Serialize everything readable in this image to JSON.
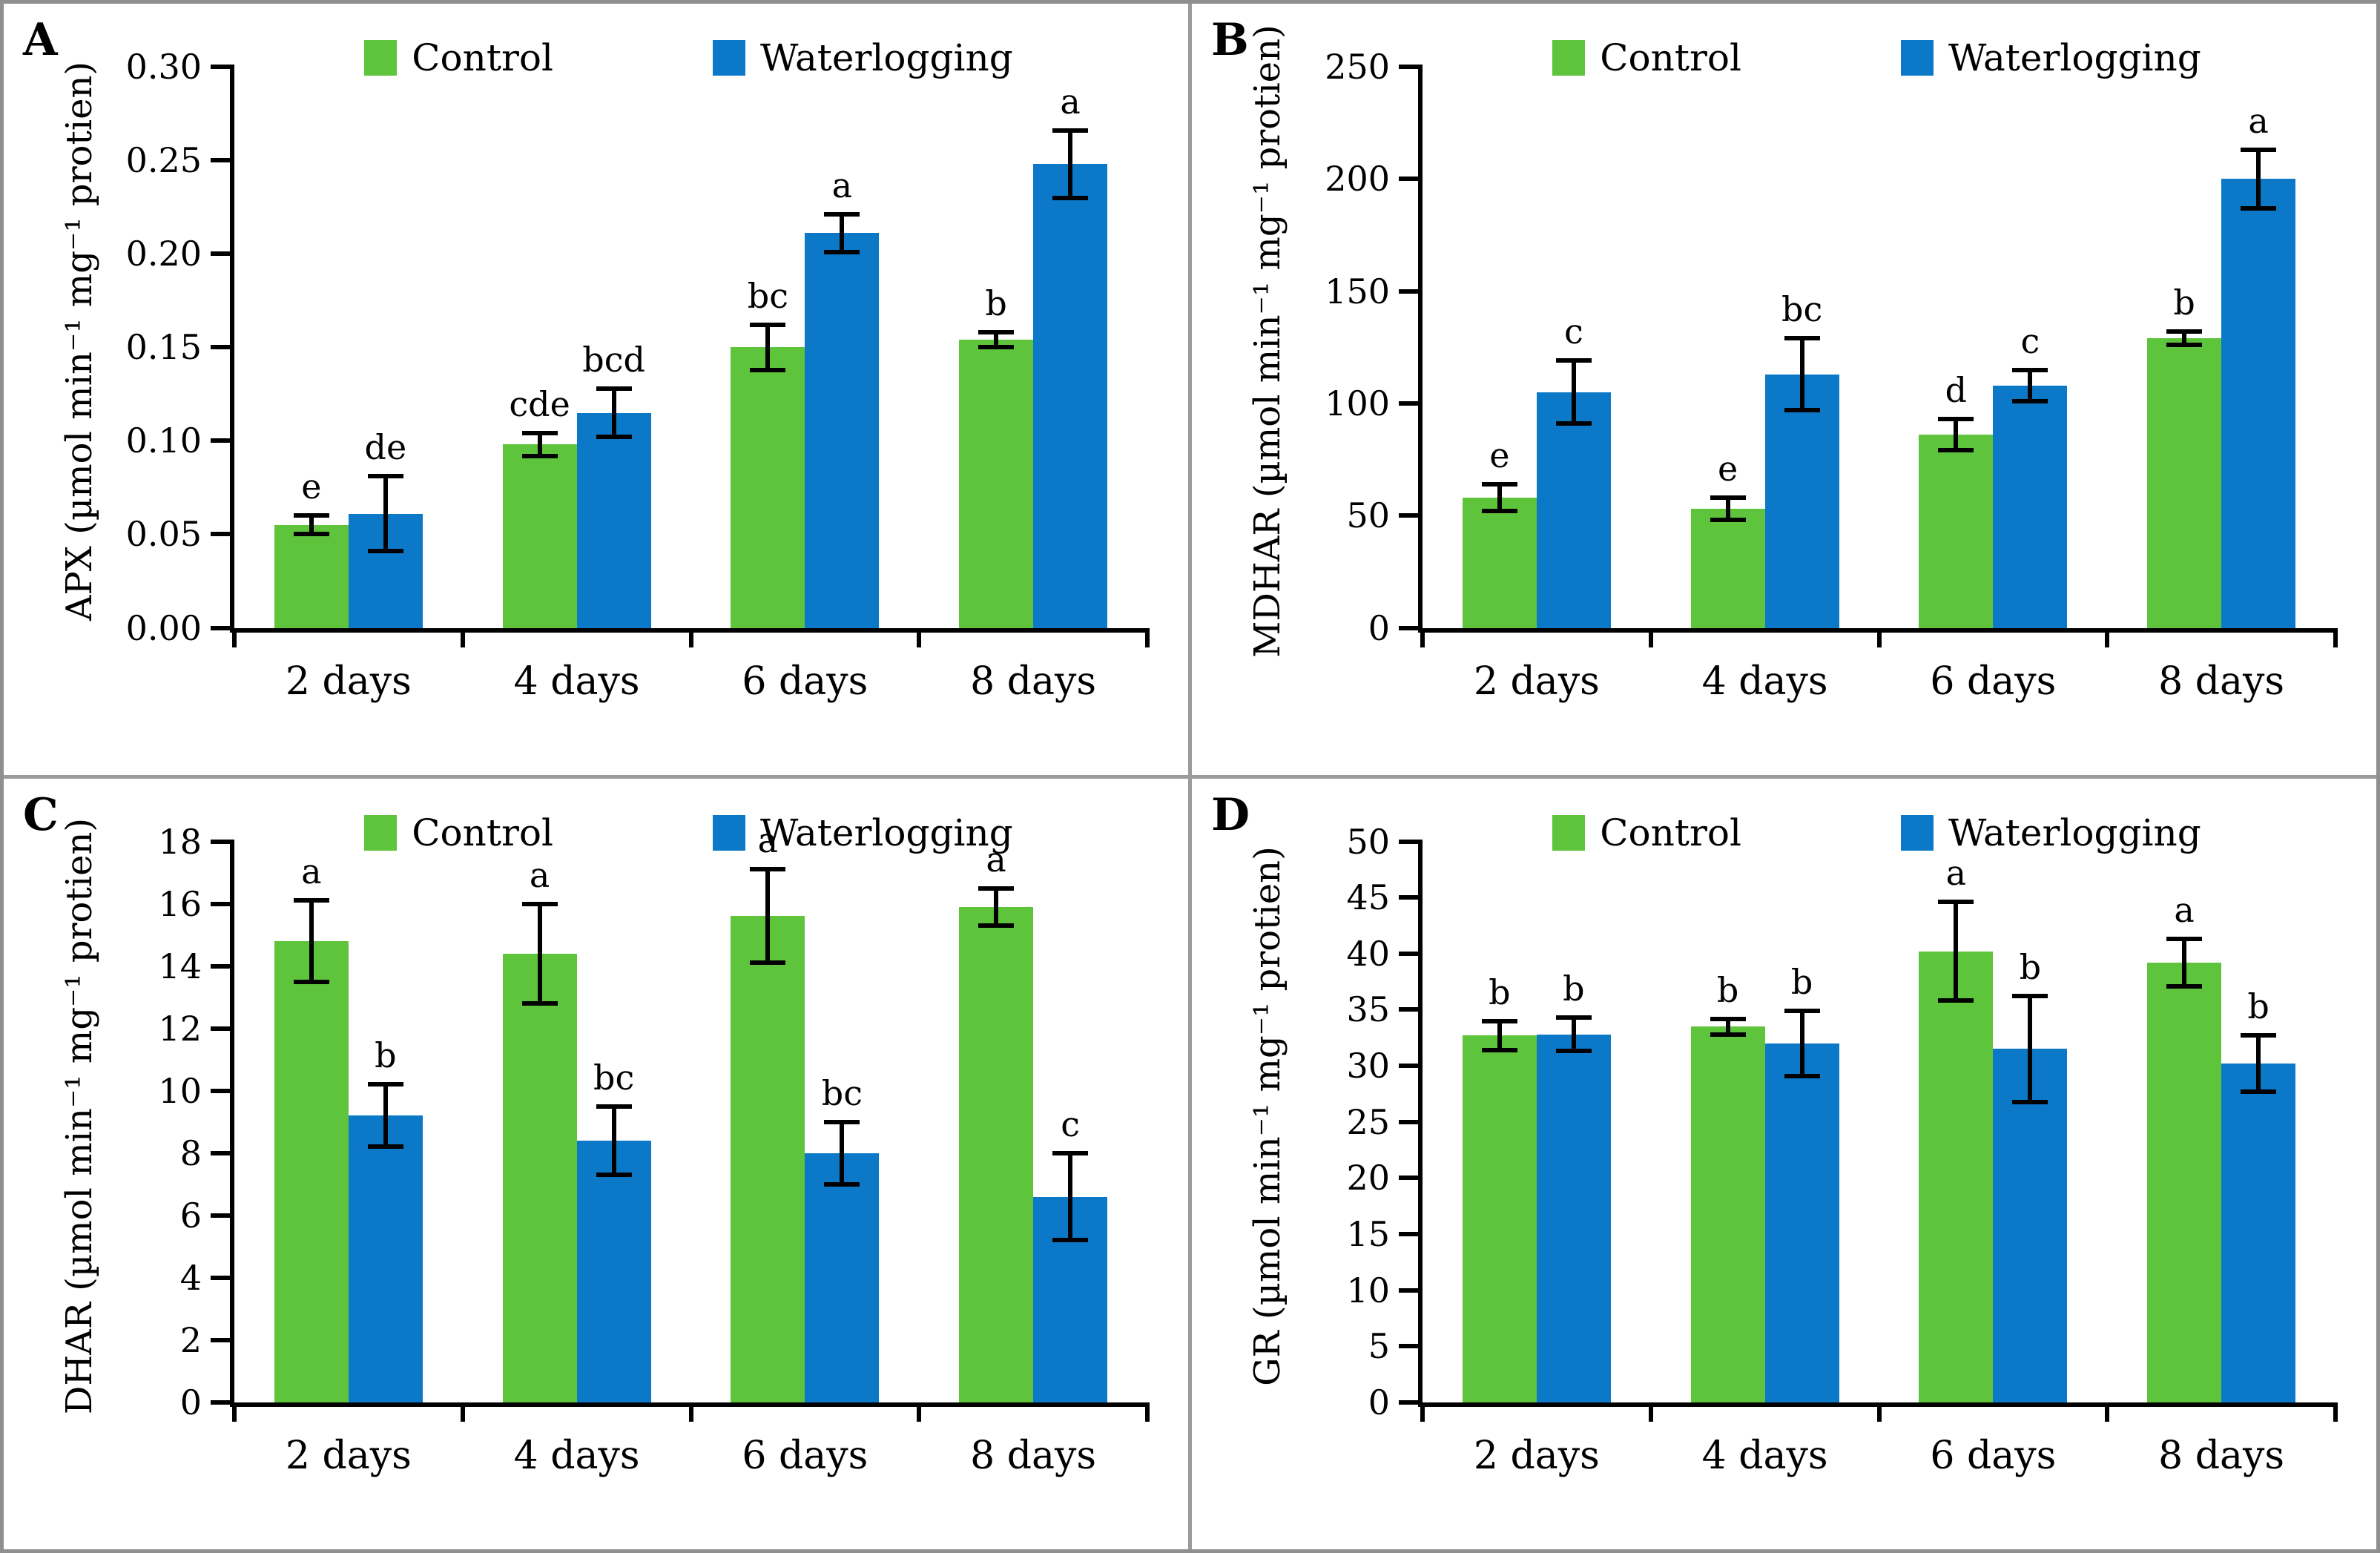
{
  "figure": {
    "description": "Four-panel bar figure of antioxidant enzyme activities under Control vs Waterlogging at 2, 4, 6 and 8 days",
    "background": "#ffffff",
    "border_color": "#8f8f8f"
  },
  "colors": {
    "control": "#5ec43c",
    "waterlogging": "#0c79c8",
    "error_bar": "#000000",
    "axis": "#000000"
  },
  "chart_data": [
    {
      "type": "bar",
      "panel": "A",
      "ylabel": "APX (µmol min⁻¹ mg⁻¹ protien)",
      "xlabel": "",
      "ylim": [
        0,
        0.3
      ],
      "ytick_step": 0.05,
      "y_decimals": 2,
      "grid": false,
      "legend_position": "top-center",
      "categories": [
        "2 days",
        "4 days",
        "6 days",
        "8 days"
      ],
      "series": [
        {
          "name": "Control",
          "values": [
            0.055,
            0.098,
            0.15,
            0.154
          ],
          "errors": [
            0.005,
            0.006,
            0.012,
            0.004
          ],
          "letters": [
            "e",
            "cde",
            "bc",
            "b"
          ]
        },
        {
          "name": "Waterlogging",
          "values": [
            0.061,
            0.115,
            0.211,
            0.248
          ],
          "errors": [
            0.02,
            0.013,
            0.01,
            0.018
          ],
          "letters": [
            "de",
            "bcd",
            "a",
            "a"
          ]
        }
      ]
    },
    {
      "type": "bar",
      "panel": "B",
      "ylabel": "MDHAR (µmol min⁻¹ mg⁻¹ protien)",
      "xlabel": "",
      "ylim": [
        0,
        250
      ],
      "ytick_step": 50,
      "y_decimals": 0,
      "grid": false,
      "legend_position": "top-center",
      "categories": [
        "2 days",
        "4 days",
        "6 days",
        "8 days"
      ],
      "series": [
        {
          "name": "Control",
          "values": [
            58,
            53,
            86,
            129
          ],
          "errors": [
            6,
            5,
            7,
            3
          ],
          "letters": [
            "e",
            "e",
            "d",
            "b"
          ]
        },
        {
          "name": "Waterlogging",
          "values": [
            105,
            113,
            108,
            200
          ],
          "errors": [
            14,
            16,
            7,
            13
          ],
          "letters": [
            "c",
            "bc",
            "c",
            "a"
          ]
        }
      ]
    },
    {
      "type": "bar",
      "panel": "C",
      "ylabel": "DHAR (µmol min⁻¹ mg⁻¹ protien)",
      "xlabel": "",
      "ylim": [
        0,
        18
      ],
      "ytick_step": 2,
      "y_decimals": 0,
      "grid": false,
      "legend_position": "top-center",
      "categories": [
        "2 days",
        "4 days",
        "6 days",
        "8 days"
      ],
      "series": [
        {
          "name": "Control",
          "values": [
            14.8,
            14.4,
            15.6,
            15.9
          ],
          "errors": [
            1.3,
            1.6,
            1.5,
            0.6
          ],
          "letters": [
            "a",
            "a",
            "a",
            "a"
          ]
        },
        {
          "name": "Waterlogging",
          "values": [
            9.2,
            8.4,
            8.0,
            6.6
          ],
          "errors": [
            1.0,
            1.1,
            1.0,
            1.4
          ],
          "letters": [
            "b",
            "bc",
            "bc",
            "c"
          ]
        }
      ]
    },
    {
      "type": "bar",
      "panel": "D",
      "ylabel": "GR (µmol min⁻¹ mg⁻¹ protien)",
      "xlabel": "",
      "ylim": [
        0,
        50
      ],
      "ytick_step": 5,
      "y_decimals": 0,
      "grid": false,
      "legend_position": "top-center",
      "categories": [
        "2 days",
        "4 days",
        "6 days",
        "8 days"
      ],
      "series": [
        {
          "name": "Control",
          "values": [
            32.7,
            33.5,
            40.2,
            39.2
          ],
          "errors": [
            1.3,
            0.7,
            4.4,
            2.1
          ],
          "letters": [
            "b",
            "b",
            "a",
            "a"
          ]
        },
        {
          "name": "Waterlogging",
          "values": [
            32.8,
            32.0,
            31.5,
            30.2
          ],
          "errors": [
            1.5,
            2.9,
            4.7,
            2.5
          ],
          "letters": [
            "b",
            "b",
            "b",
            "b"
          ]
        }
      ]
    }
  ]
}
